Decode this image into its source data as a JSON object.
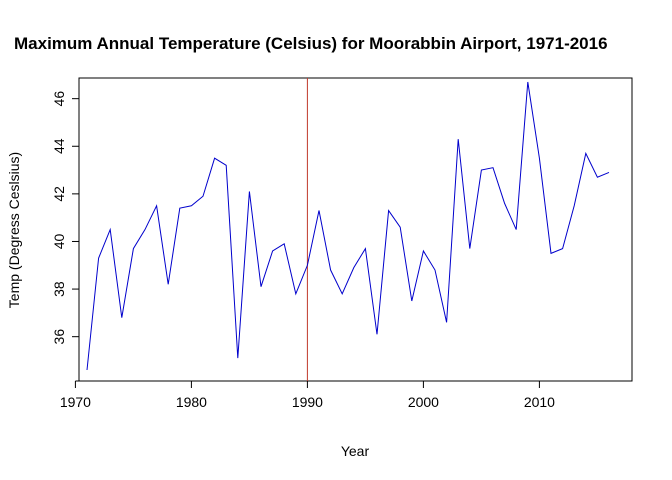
{
  "chart_data": {
    "type": "line",
    "title": "Maximum Annual Temperature (Celsius) for Moorabbin Airport, 1971-2016",
    "xlabel": "Year",
    "ylabel": "Temp (Degress Ceslsius)",
    "xlim": [
      1971,
      2016
    ],
    "ylim": [
      34.6,
      46.7
    ],
    "x_ticks": [
      1970,
      1980,
      1990,
      2000,
      2010
    ],
    "y_ticks": [
      36,
      38,
      40,
      42,
      44,
      46
    ],
    "grid": false,
    "legend": "none",
    "vline": {
      "x": 1990,
      "color": "#c0392b"
    },
    "series": [
      {
        "color": "#0000cc",
        "x": [
          1971,
          1972,
          1973,
          1974,
          1975,
          1976,
          1977,
          1978,
          1979,
          1980,
          1981,
          1982,
          1983,
          1984,
          1985,
          1986,
          1987,
          1988,
          1989,
          1990,
          1991,
          1992,
          1993,
          1994,
          1995,
          1996,
          1997,
          1998,
          1999,
          2000,
          2001,
          2002,
          2003,
          2004,
          2005,
          2006,
          2007,
          2008,
          2009,
          2010,
          2011,
          2012,
          2013,
          2014,
          2015,
          2016
        ],
        "y": [
          34.6,
          39.3,
          40.5,
          36.8,
          39.7,
          40.5,
          41.5,
          38.2,
          41.4,
          41.5,
          41.9,
          43.5,
          43.2,
          35.1,
          42.1,
          38.1,
          39.6,
          39.9,
          37.8,
          39.0,
          41.3,
          38.8,
          37.8,
          38.9,
          39.7,
          36.1,
          41.3,
          40.6,
          37.5,
          39.6,
          38.8,
          36.6,
          44.3,
          39.7,
          43.0,
          43.1,
          41.6,
          40.5,
          46.7,
          43.5,
          39.5,
          39.7,
          41.5,
          43.7,
          42.7,
          42.9
        ]
      }
    ]
  }
}
